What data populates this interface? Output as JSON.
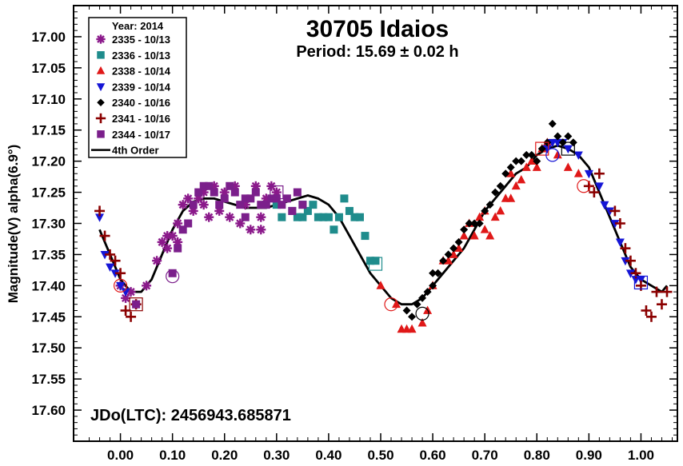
{
  "chart_data": {
    "type": "scatter",
    "title": "30705 Idaios",
    "subtitle": "Period: 15.69 ± 0.02 h",
    "ylabel": "Magnitude(V) alpha(6.9°)",
    "annotation": "JDo(LTC): 2456943.685871",
    "xlim": [
      -0.09,
      1.07
    ],
    "ylim": [
      17.65,
      16.95
    ],
    "y_inverted": true,
    "x_ticks": [
      "0.00",
      "0.10",
      "0.20",
      "0.30",
      "0.40",
      "0.50",
      "0.60",
      "0.70",
      "0.80",
      "0.90",
      "1.00"
    ],
    "y_ticks": [
      "17.00",
      "17.05",
      "17.10",
      "17.15",
      "17.20",
      "17.25",
      "17.30",
      "17.35",
      "17.40",
      "17.45",
      "17.50",
      "17.55",
      "17.60"
    ],
    "legend_title": "Year: 2014",
    "legend_position": "top-left",
    "series": [
      {
        "name": "2335 - 10/13",
        "marker": "asterisk",
        "color": "#8b1a8b",
        "points": [
          [
            0.0,
            17.4
          ],
          [
            0.01,
            17.42
          ],
          [
            0.02,
            17.41
          ],
          [
            0.05,
            17.4
          ],
          [
            0.07,
            17.36
          ],
          [
            0.08,
            17.33
          ],
          [
            0.09,
            17.34
          ],
          [
            0.1,
            17.32
          ],
          [
            0.11,
            17.3
          ],
          [
            0.12,
            17.27
          ],
          [
            0.13,
            17.26
          ],
          [
            0.14,
            17.28
          ],
          [
            0.15,
            17.26
          ],
          [
            0.16,
            17.27
          ],
          [
            0.17,
            17.29
          ],
          [
            0.18,
            17.24
          ],
          [
            0.19,
            17.28
          ],
          [
            0.2,
            17.25
          ],
          [
            0.21,
            17.29
          ],
          [
            0.22,
            17.24
          ],
          [
            0.23,
            17.3
          ],
          [
            0.24,
            17.27
          ],
          [
            0.25,
            17.31
          ],
          [
            0.26,
            17.24
          ],
          [
            0.27,
            17.29
          ],
          [
            0.28,
            17.26
          ],
          [
            0.29,
            17.24
          ],
          [
            0.3,
            17.25
          ],
          [
            0.09,
            17.32
          ],
          [
            0.11,
            17.33
          ],
          [
            0.27,
            17.31
          ],
          [
            0.16,
            17.25
          ]
        ]
      },
      {
        "name": "2336 - 10/13",
        "marker": "square",
        "color": "#1f8c8c",
        "points": [
          [
            0.3,
            17.27
          ],
          [
            0.31,
            17.29
          ],
          [
            0.33,
            17.28
          ],
          [
            0.34,
            17.29
          ],
          [
            0.35,
            17.29
          ],
          [
            0.36,
            17.28
          ],
          [
            0.37,
            17.27
          ],
          [
            0.38,
            17.29
          ],
          [
            0.39,
            17.29
          ],
          [
            0.4,
            17.29
          ],
          [
            0.41,
            17.31
          ],
          [
            0.42,
            17.29
          ],
          [
            0.43,
            17.26
          ],
          [
            0.44,
            17.28
          ],
          [
            0.45,
            17.29
          ],
          [
            0.46,
            17.29
          ],
          [
            0.47,
            17.32
          ],
          [
            0.48,
            17.36
          ],
          [
            0.49,
            17.36
          ],
          [
            0.35,
            17.27
          ]
        ]
      },
      {
        "name": "2338 - 10/14",
        "marker": "triangle-up",
        "color": "#e01818",
        "points": [
          [
            0.5,
            17.4
          ],
          [
            0.53,
            17.43
          ],
          [
            0.54,
            17.47
          ],
          [
            0.55,
            17.47
          ],
          [
            0.56,
            17.47
          ],
          [
            0.58,
            17.46
          ],
          [
            0.6,
            17.4
          ],
          [
            0.63,
            17.36
          ],
          [
            0.65,
            17.34
          ],
          [
            0.66,
            17.32
          ],
          [
            0.67,
            17.3
          ],
          [
            0.68,
            17.32
          ],
          [
            0.69,
            17.29
          ],
          [
            0.7,
            17.31
          ],
          [
            0.71,
            17.32
          ],
          [
            0.72,
            17.29
          ],
          [
            0.73,
            17.28
          ],
          [
            0.74,
            17.26
          ],
          [
            0.75,
            17.26
          ],
          [
            0.76,
            17.24
          ],
          [
            0.77,
            17.23
          ],
          [
            0.78,
            17.21
          ],
          [
            0.79,
            17.2
          ],
          [
            0.8,
            17.21
          ],
          [
            0.81,
            17.18
          ],
          [
            0.82,
            17.17
          ],
          [
            0.84,
            17.19
          ],
          [
            0.86,
            17.21
          ],
          [
            0.88,
            17.22
          ],
          [
            0.59,
            17.44
          ],
          [
            0.62,
            17.36
          ],
          [
            0.64,
            17.35
          ],
          [
            0.7,
            17.28
          ],
          [
            0.75,
            17.22
          ]
        ]
      },
      {
        "name": "2339 - 10/14",
        "marker": "triangle-down",
        "color": "#1515d6",
        "points": [
          [
            -0.04,
            17.29
          ],
          [
            -0.03,
            17.35
          ],
          [
            -0.02,
            17.37
          ],
          [
            -0.01,
            17.38
          ],
          [
            0.0,
            17.4
          ],
          [
            0.01,
            17.41
          ],
          [
            0.82,
            17.18
          ],
          [
            0.83,
            17.17
          ],
          [
            0.84,
            17.17
          ],
          [
            0.85,
            17.17
          ],
          [
            0.86,
            17.18
          ],
          [
            0.88,
            17.19
          ],
          [
            0.9,
            17.22
          ],
          [
            0.92,
            17.24
          ],
          [
            0.93,
            17.27
          ],
          [
            0.94,
            17.28
          ],
          [
            0.95,
            17.3
          ],
          [
            0.96,
            17.33
          ],
          [
            0.97,
            17.36
          ],
          [
            0.98,
            17.38
          ],
          [
            0.99,
            17.39
          ],
          [
            1.0,
            17.39
          ]
        ]
      },
      {
        "name": "2340 - 10/16",
        "marker": "diamond",
        "color": "#000000",
        "points": [
          [
            0.57,
            17.43
          ],
          [
            0.58,
            17.42
          ],
          [
            0.59,
            17.41
          ],
          [
            0.6,
            17.4
          ],
          [
            0.61,
            17.38
          ],
          [
            0.62,
            17.36
          ],
          [
            0.63,
            17.35
          ],
          [
            0.64,
            17.34
          ],
          [
            0.65,
            17.33
          ],
          [
            0.66,
            17.31
          ],
          [
            0.67,
            17.3
          ],
          [
            0.68,
            17.3
          ],
          [
            0.69,
            17.3
          ],
          [
            0.7,
            17.28
          ],
          [
            0.71,
            17.27
          ],
          [
            0.72,
            17.25
          ],
          [
            0.73,
            17.24
          ],
          [
            0.74,
            17.22
          ],
          [
            0.75,
            17.21
          ],
          [
            0.76,
            17.2
          ],
          [
            0.77,
            17.2
          ],
          [
            0.78,
            17.19
          ],
          [
            0.79,
            17.19
          ],
          [
            0.8,
            17.2
          ],
          [
            0.81,
            17.18
          ],
          [
            0.82,
            17.17
          ],
          [
            0.83,
            17.14
          ],
          [
            0.84,
            17.16
          ],
          [
            0.85,
            17.17
          ],
          [
            0.86,
            17.16
          ],
          [
            0.87,
            17.17
          ],
          [
            0.55,
            17.44
          ],
          [
            0.56,
            17.45
          ],
          [
            0.6,
            17.38
          ]
        ]
      },
      {
        "name": "2341 - 10/16",
        "marker": "plus",
        "color": "#8b0000",
        "points": [
          [
            -0.04,
            17.28
          ],
          [
            -0.03,
            17.32
          ],
          [
            -0.02,
            17.35
          ],
          [
            -0.01,
            17.36
          ],
          [
            0.0,
            17.38
          ],
          [
            0.01,
            17.44
          ],
          [
            0.02,
            17.45
          ],
          [
            0.03,
            17.43
          ],
          [
            0.9,
            17.24
          ],
          [
            0.91,
            17.25
          ],
          [
            0.92,
            17.22
          ],
          [
            0.95,
            17.28
          ],
          [
            0.96,
            17.3
          ],
          [
            0.97,
            17.34
          ],
          [
            0.98,
            17.36
          ],
          [
            0.99,
            17.38
          ],
          [
            1.0,
            17.4
          ],
          [
            1.01,
            17.44
          ],
          [
            1.02,
            17.45
          ],
          [
            1.03,
            17.41
          ],
          [
            1.04,
            17.43
          ],
          [
            1.05,
            17.41
          ]
        ]
      },
      {
        "name": "2344 - 10/17",
        "marker": "square",
        "color": "#7b1f8b",
        "points": [
          [
            0.03,
            17.43
          ],
          [
            0.1,
            17.38
          ],
          [
            0.12,
            17.31
          ],
          [
            0.14,
            17.27
          ],
          [
            0.15,
            17.25
          ],
          [
            0.16,
            17.24
          ],
          [
            0.17,
            17.24
          ],
          [
            0.18,
            17.25
          ],
          [
            0.19,
            17.27
          ],
          [
            0.2,
            17.26
          ],
          [
            0.21,
            17.24
          ],
          [
            0.22,
            17.25
          ],
          [
            0.23,
            17.27
          ],
          [
            0.24,
            17.26
          ],
          [
            0.25,
            17.26
          ],
          [
            0.26,
            17.25
          ],
          [
            0.27,
            17.27
          ],
          [
            0.28,
            17.27
          ],
          [
            0.29,
            17.26
          ],
          [
            0.3,
            17.26
          ],
          [
            0.31,
            17.27
          ],
          [
            0.32,
            17.26
          ],
          [
            0.33,
            17.28
          ],
          [
            0.34,
            17.25
          ],
          [
            0.35,
            17.27
          ],
          [
            0.11,
            17.34
          ],
          [
            0.13,
            17.3
          ],
          [
            0.24,
            17.29
          ]
        ]
      },
      {
        "name": "4th Order",
        "marker": "line",
        "color": "#000000",
        "points": [
          [
            -0.04,
            17.31
          ],
          [
            -0.02,
            17.35
          ],
          [
            0.0,
            17.39
          ],
          [
            0.02,
            17.41
          ],
          [
            0.04,
            17.41
          ],
          [
            0.06,
            17.39
          ],
          [
            0.08,
            17.35
          ],
          [
            0.1,
            17.31
          ],
          [
            0.12,
            17.28
          ],
          [
            0.14,
            17.265
          ],
          [
            0.16,
            17.26
          ],
          [
            0.18,
            17.26
          ],
          [
            0.2,
            17.265
          ],
          [
            0.22,
            17.27
          ],
          [
            0.24,
            17.275
          ],
          [
            0.26,
            17.275
          ],
          [
            0.28,
            17.275
          ],
          [
            0.3,
            17.27
          ],
          [
            0.32,
            17.265
          ],
          [
            0.34,
            17.26
          ],
          [
            0.36,
            17.255
          ],
          [
            0.38,
            17.26
          ],
          [
            0.4,
            17.27
          ],
          [
            0.42,
            17.29
          ],
          [
            0.44,
            17.32
          ],
          [
            0.46,
            17.35
          ],
          [
            0.48,
            17.38
          ],
          [
            0.5,
            17.4
          ],
          [
            0.52,
            17.42
          ],
          [
            0.54,
            17.43
          ],
          [
            0.56,
            17.43
          ],
          [
            0.58,
            17.42
          ],
          [
            0.6,
            17.4
          ],
          [
            0.62,
            17.38
          ],
          [
            0.64,
            17.36
          ],
          [
            0.66,
            17.34
          ],
          [
            0.68,
            17.31
          ],
          [
            0.7,
            17.28
          ],
          [
            0.72,
            17.26
          ],
          [
            0.74,
            17.24
          ],
          [
            0.76,
            17.22
          ],
          [
            0.78,
            17.21
          ],
          [
            0.8,
            17.19
          ],
          [
            0.82,
            17.18
          ],
          [
            0.84,
            17.175
          ],
          [
            0.86,
            17.18
          ],
          [
            0.88,
            17.19
          ],
          [
            0.9,
            17.21
          ],
          [
            0.92,
            17.25
          ],
          [
            0.94,
            17.29
          ],
          [
            0.96,
            17.33
          ],
          [
            0.98,
            17.37
          ],
          [
            1.0,
            17.39
          ],
          [
            1.02,
            17.4
          ],
          [
            1.04,
            17.41
          ],
          [
            1.05,
            17.4
          ]
        ]
      }
    ],
    "highlighted_points": [
      {
        "series": "2338 - 10/14",
        "x": 0.52,
        "y": 17.43,
        "shape": "circle",
        "color": "#e01818"
      },
      {
        "series": "2338 - 10/14",
        "x": 0.81,
        "y": 17.18,
        "shape": "square",
        "color": "#e01818"
      },
      {
        "series": "2338 - 10/14",
        "x": 0.89,
        "y": 17.24,
        "shape": "circle",
        "color": "#e01818"
      },
      {
        "series": "2338 - 10/14",
        "x": 0.0,
        "y": 17.4,
        "shape": "circle",
        "color": "#e01818"
      },
      {
        "series": "2344 - 10/17",
        "x": 0.1,
        "y": 17.385,
        "shape": "circle",
        "color": "#7b1f8b"
      },
      {
        "series": "2344 - 10/17",
        "x": 0.3,
        "y": 17.25,
        "shape": "square",
        "color": "#7b1f8b"
      },
      {
        "series": "2336 - 10/13",
        "x": 0.49,
        "y": 17.365,
        "shape": "square",
        "color": "#1f8c8c"
      },
      {
        "series": "2340 - 10/16",
        "x": 0.58,
        "y": 17.445,
        "shape": "circle",
        "color": "#000000"
      },
      {
        "series": "2340 - 10/16",
        "x": 0.86,
        "y": 17.18,
        "shape": "square",
        "color": "#000000"
      },
      {
        "series": "2339 - 10/14",
        "x": 0.83,
        "y": 17.19,
        "shape": "circle",
        "color": "#1515d6"
      },
      {
        "series": "2339 - 10/14",
        "x": 1.0,
        "y": 17.395,
        "shape": "square",
        "color": "#1515d6"
      },
      {
        "series": "2341 - 10/16",
        "x": 0.03,
        "y": 17.43,
        "shape": "square",
        "color": "#8b0000"
      }
    ]
  }
}
